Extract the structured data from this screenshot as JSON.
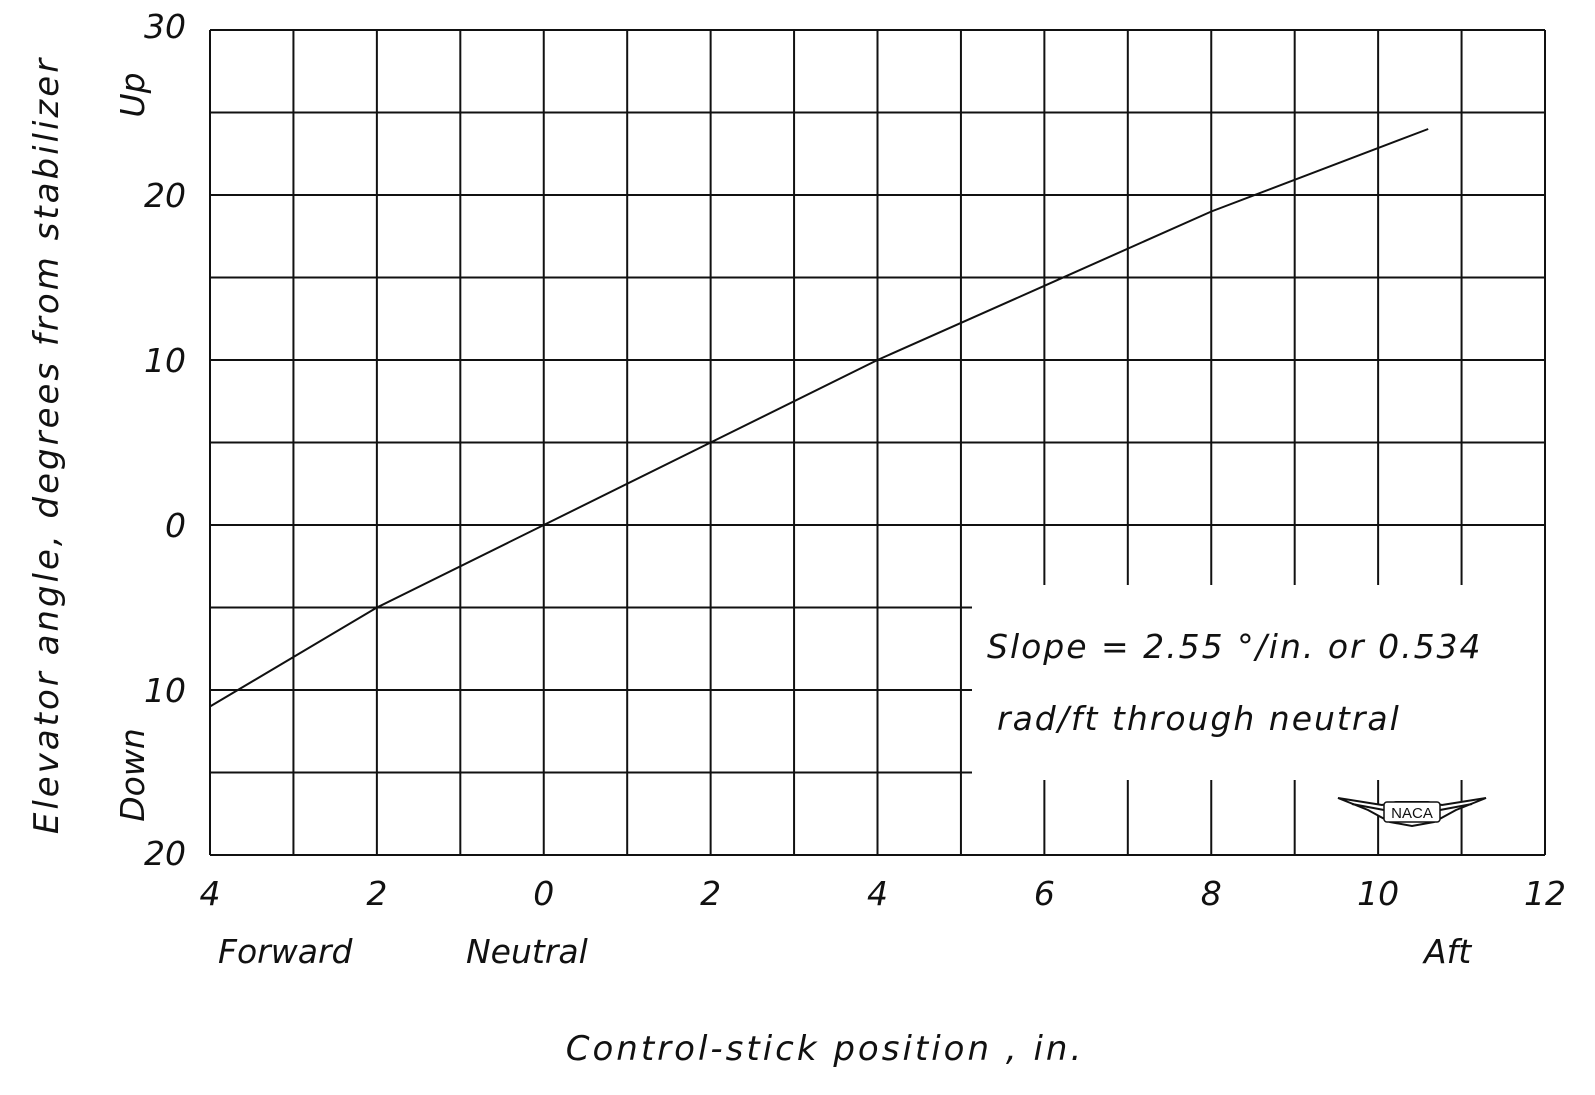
{
  "chart_data": {
    "type": "line",
    "xlabel": "Control-stick position , in.",
    "ylabel": "Elevator angle, degrees from stabilizer",
    "xlim": [
      -4,
      12
    ],
    "ylim": [
      -20,
      30
    ],
    "grid": true,
    "x_ticks": [
      {
        "value": -4,
        "label": "4"
      },
      {
        "value": -2,
        "label": "2"
      },
      {
        "value": 0,
        "label": "0"
      },
      {
        "value": 2,
        "label": "2"
      },
      {
        "value": 4,
        "label": "4"
      },
      {
        "value": 6,
        "label": "6"
      },
      {
        "value": 8,
        "label": "8"
      },
      {
        "value": 10,
        "label": "10"
      },
      {
        "value": 12,
        "label": "12"
      }
    ],
    "y_ticks": [
      {
        "value": 30,
        "label": "30"
      },
      {
        "value": 20,
        "label": "20"
      },
      {
        "value": 10,
        "label": "10"
      },
      {
        "value": 0,
        "label": "0"
      },
      {
        "value": -10,
        "label": "10"
      },
      {
        "value": -20,
        "label": "20"
      }
    ],
    "x_direction_labels": {
      "forward": "Forward",
      "neutral": "Neutral",
      "aft": "Aft"
    },
    "y_direction_labels": {
      "up": "Up",
      "down": "Down"
    },
    "annotation": {
      "line1": "Slope = 2.55 °/in. or 0.534",
      "line2": "rad/ft  through  neutral"
    },
    "logo_text": "NACA",
    "series": [
      {
        "x": [
          -4.0,
          -2.0,
          0.0,
          2.0,
          4.0,
          6.0,
          8.0,
          10.6
        ],
        "values": [
          -11.0,
          -5.0,
          0.0,
          5.0,
          10.0,
          14.5,
          19.0,
          24.0
        ]
      }
    ]
  }
}
